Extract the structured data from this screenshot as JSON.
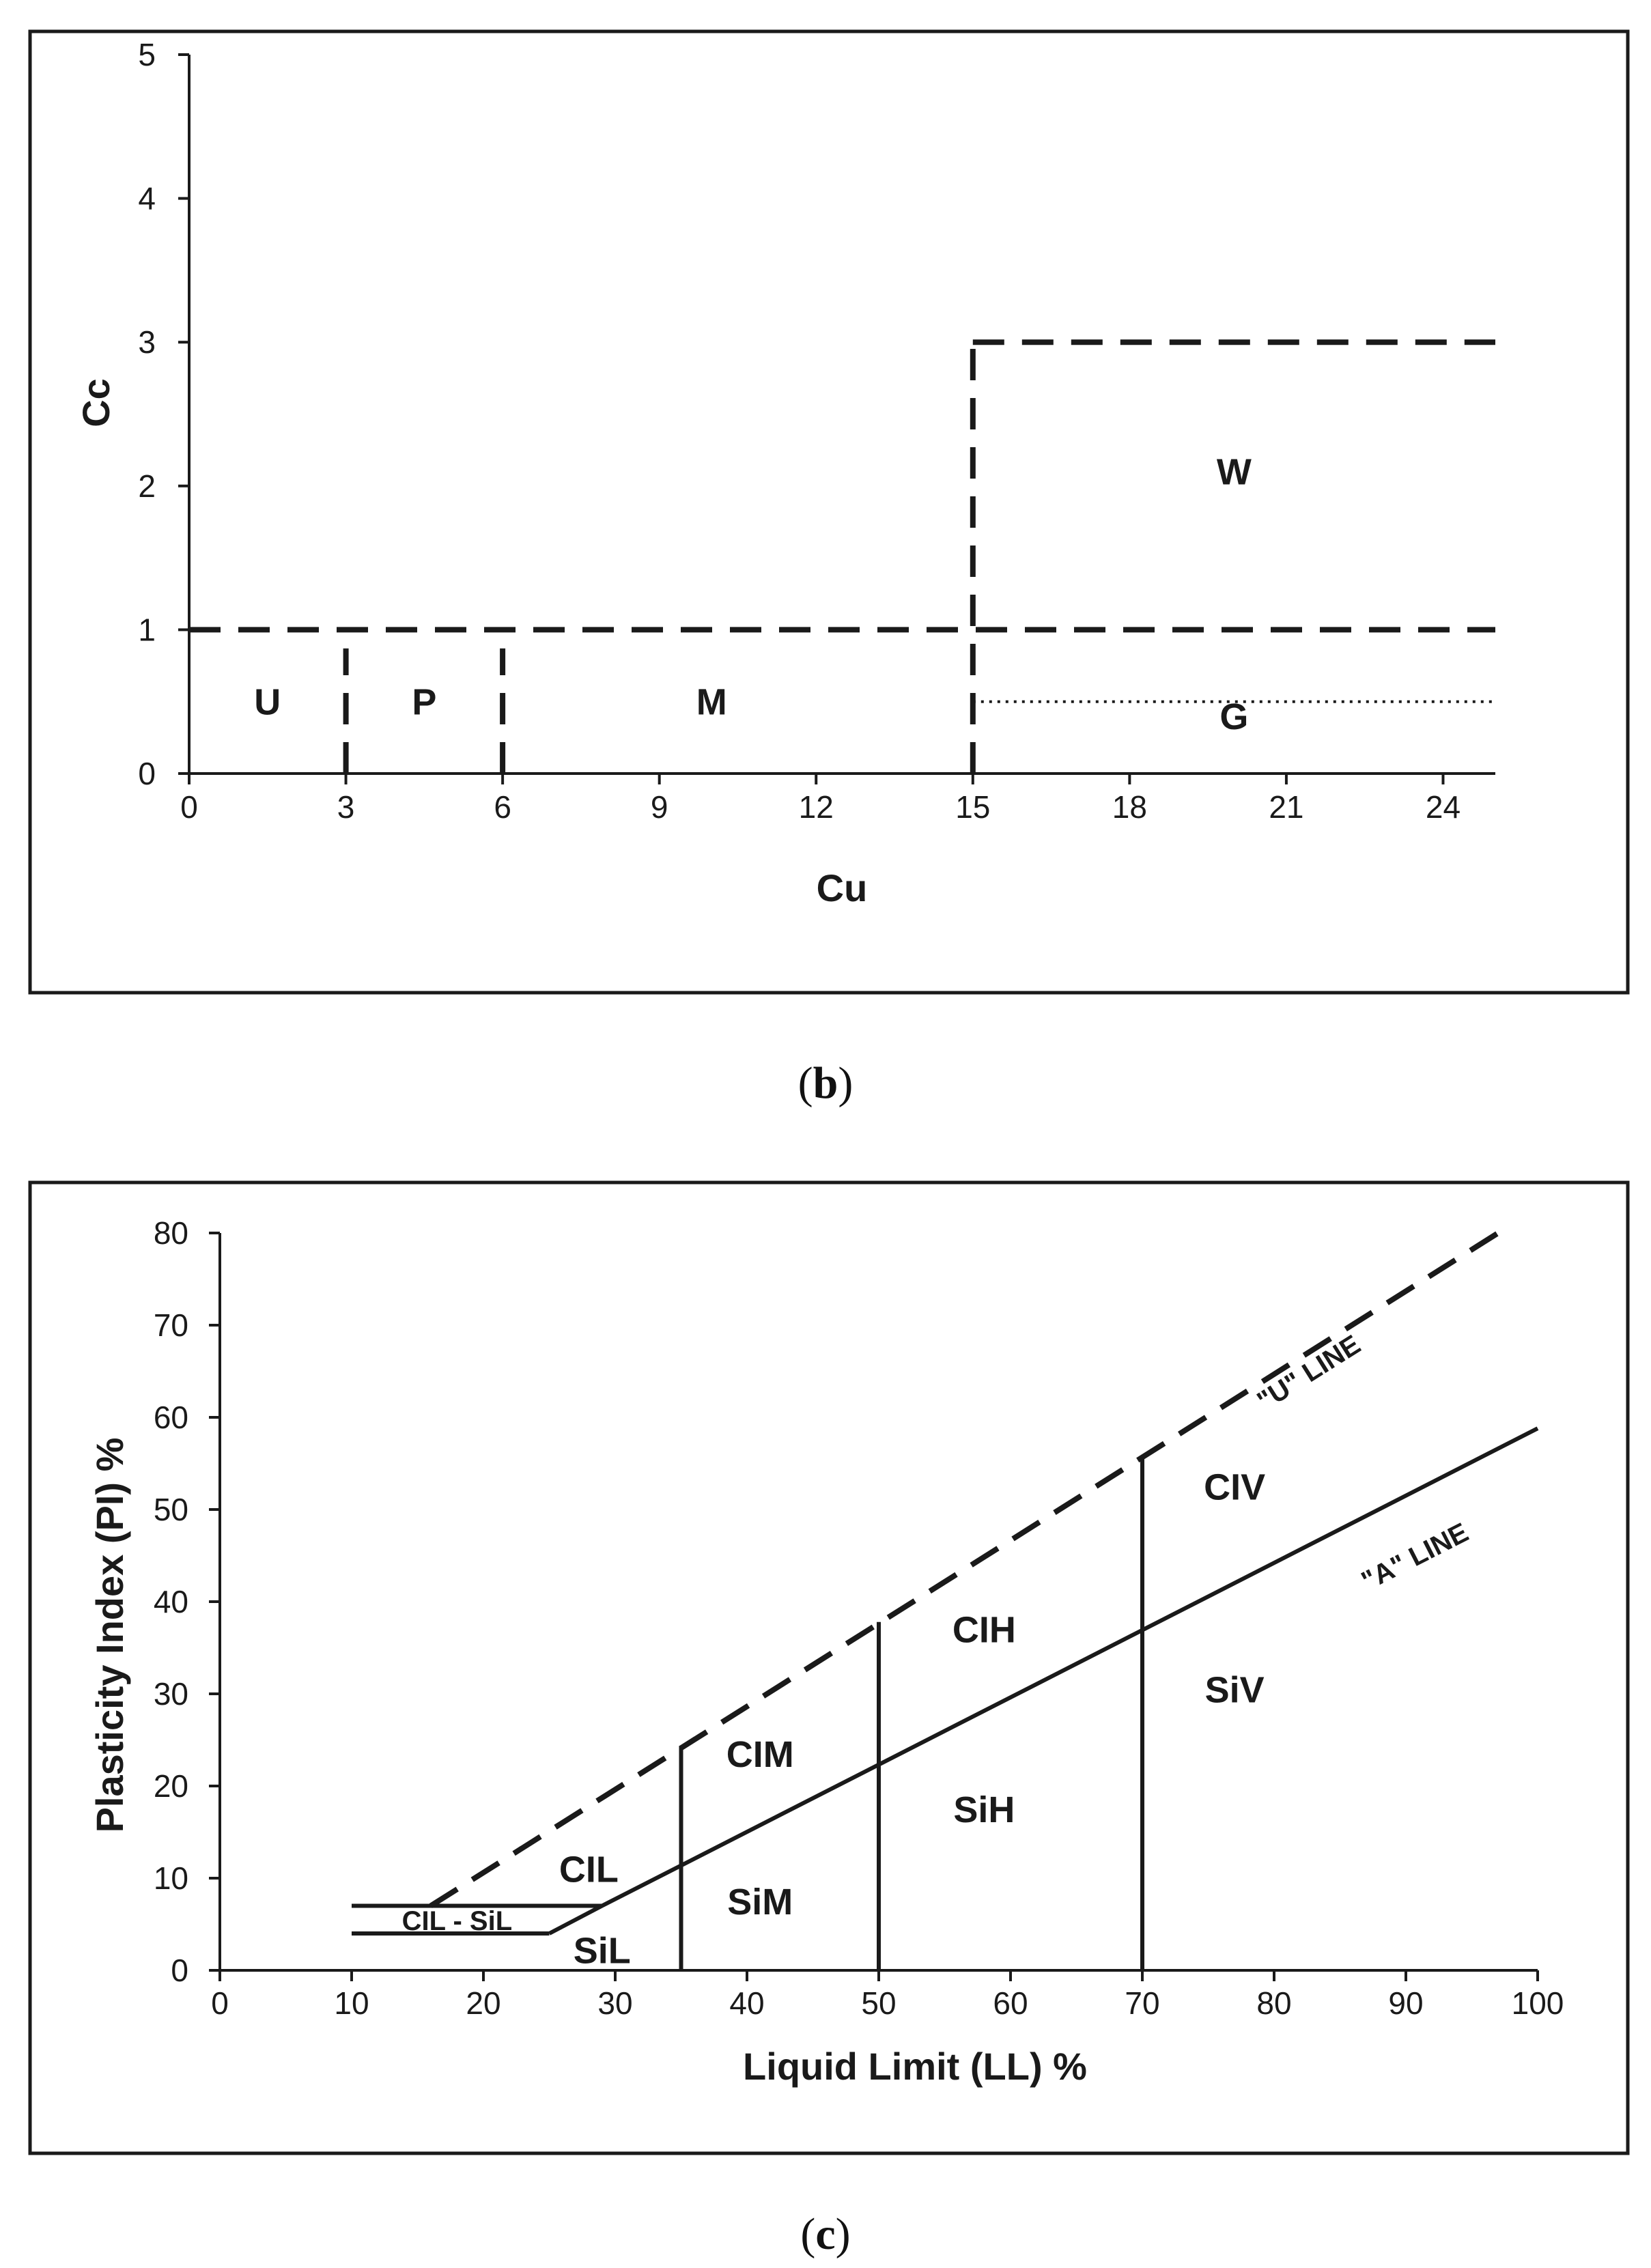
{
  "chart_data": [
    {
      "panel": "b",
      "type": "line",
      "caption": "(b)",
      "caption_parts": [
        "(",
        "b",
        ")"
      ],
      "xlabel": "Cu",
      "ylabel": "Cc",
      "xlim": [
        0,
        25
      ],
      "ylim": [
        0,
        5
      ],
      "xticks": [
        0,
        3,
        6,
        9,
        12,
        15,
        18,
        21,
        24
      ],
      "yticks": [
        0,
        1,
        2,
        3,
        4,
        5
      ],
      "grid": false,
      "series": [
        {
          "name": "Cc = 1",
          "style": "dashed",
          "points": [
            [
              0,
              1
            ],
            [
              25,
              1
            ]
          ]
        },
        {
          "name": "Cu = 3",
          "style": "dashed",
          "points": [
            [
              3,
              0
            ],
            [
              3,
              0.87
            ]
          ]
        },
        {
          "name": "Cu = 6",
          "style": "dashed",
          "points": [
            [
              6,
              0
            ],
            [
              6,
              0.87
            ]
          ]
        },
        {
          "name": "Cu = 15",
          "style": "dashed",
          "points": [
            [
              15,
              0
            ],
            [
              15,
              3
            ]
          ]
        },
        {
          "name": "Cc = 3",
          "style": "dashed",
          "points": [
            [
              15,
              3
            ],
            [
              25,
              3
            ]
          ]
        },
        {
          "name": "Cc = 0.5",
          "style": "dotted",
          "points": [
            [
              15,
              0.5
            ],
            [
              25,
              0.5
            ]
          ]
        }
      ],
      "regions": [
        {
          "label": "U",
          "x": 1.5,
          "y": 0.5
        },
        {
          "label": "P",
          "x": 4.5,
          "y": 0.5
        },
        {
          "label": "M",
          "x": 10.0,
          "y": 0.5
        },
        {
          "label": "W",
          "x": 20.0,
          "y": 2.1
        },
        {
          "label": "G",
          "x": 20.0,
          "y": 0.4
        }
      ]
    },
    {
      "panel": "c",
      "type": "line",
      "caption": "(c)",
      "caption_parts": [
        "(",
        "c",
        ")"
      ],
      "xlabel": "Liquid Limit (LL) %",
      "ylabel": "Plasticity Index (PI) %",
      "xlim": [
        0,
        100
      ],
      "ylim": [
        0,
        80
      ],
      "xticks": [
        0,
        10,
        20,
        30,
        40,
        50,
        60,
        70,
        80,
        90,
        100
      ],
      "yticks": [
        0,
        10,
        20,
        30,
        40,
        50,
        60,
        70,
        80
      ],
      "grid": false,
      "series": [
        {
          "name": "\"U\" LINE",
          "style": "dashed",
          "points": [
            [
              16,
              7
            ],
            [
              97,
              80
            ]
          ]
        },
        {
          "name": "\"A\" LINE",
          "style": "solid",
          "points": [
            [
              25,
              4
            ],
            [
              29,
              7
            ],
            [
              100,
              58.8
            ]
          ]
        },
        {
          "name": "PI = 7",
          "style": "solid",
          "points": [
            [
              10,
              7
            ],
            [
              29,
              7
            ]
          ]
        },
        {
          "name": "PI = 4",
          "style": "solid",
          "points": [
            [
              10,
              4
            ],
            [
              25,
              4
            ]
          ]
        },
        {
          "name": "LL = 35",
          "style": "solid",
          "points": [
            [
              35,
              0
            ],
            [
              35,
              24.3
            ]
          ]
        },
        {
          "name": "LL = 50",
          "style": "solid",
          "points": [
            [
              50,
              0
            ],
            [
              50,
              37.8
            ]
          ]
        },
        {
          "name": "LL = 70",
          "style": "solid",
          "points": [
            [
              70,
              0
            ],
            [
              70,
              55.8
            ]
          ]
        }
      ],
      "line_labels": [
        {
          "label": "\"U\" LINE",
          "x": 83,
          "y": 64
        },
        {
          "label": "\"A\" LINE",
          "x": 91,
          "y": 44
        }
      ],
      "regions": [
        {
          "label": "CIL",
          "x": 28,
          "y": 11
        },
        {
          "label": "CIL - SiL",
          "x": 18,
          "y": 5.4
        },
        {
          "label": "SiL",
          "x": 29,
          "y": 2.2
        },
        {
          "label": "CIM",
          "x": 41,
          "y": 23.5
        },
        {
          "label": "SiM",
          "x": 41,
          "y": 7.5
        },
        {
          "label": "CIH",
          "x": 58,
          "y": 37
        },
        {
          "label": "SiH",
          "x": 58,
          "y": 17.5
        },
        {
          "label": "CIV",
          "x": 77,
          "y": 52.5
        },
        {
          "label": "SiV",
          "x": 77,
          "y": 30.5
        }
      ]
    }
  ]
}
